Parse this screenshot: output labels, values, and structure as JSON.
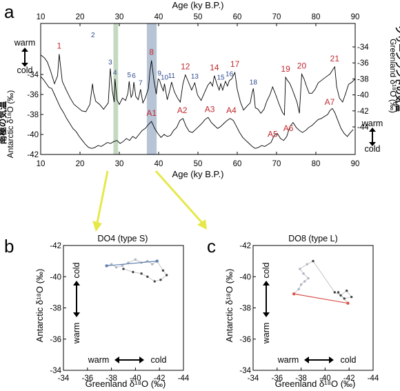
{
  "panels": {
    "a": "a",
    "b": "b",
    "c": "c"
  },
  "colors": {
    "red_label": "#c1272d",
    "blue_label": "#2e4a8f",
    "band_green": "#c5d9c2",
    "band_blue": "#b6c4d6",
    "arrow_yellow": "#e6e84a",
    "scatter_blue": "#5e7fb0",
    "scatter_red": "#d9534f"
  },
  "text": {
    "warm_left": "warm",
    "cold_left": "cold",
    "warm_right": "warm",
    "cold_right": "cold",
    "jp_greenland": "グリーンランドの気温",
    "jp_antarctic": "南極の気温",
    "b_warm_y": "warm",
    "b_cold_y": "cold",
    "b_warm_x": "warm",
    "b_cold_x": "cold",
    "c_warm_y": "warm",
    "c_cold_y": "cold",
    "c_warm_x": "warm",
    "c_cold_x": "cold"
  },
  "chart_data": [
    {
      "type": "line",
      "xlabel_top": "Age (ky B.P.)",
      "xlabel_bottom": "Age (ky B.P.)",
      "ylabel_left": "Antarctic δ¹⁸O (‰)",
      "ylabel_right": "Greenland δ¹⁸O (‰)",
      "xlim": [
        10,
        90
      ],
      "x_ticks": [
        "10",
        "20",
        "30",
        "40",
        "50",
        "60",
        "70",
        "80",
        "90"
      ],
      "ylim_left": [
        -42,
        -34
      ],
      "y_ticks_left": [
        "-34",
        "-36",
        "-38",
        "-40",
        "-42"
      ],
      "ylim_right": [
        -44,
        -34
      ],
      "y_ticks_right": [
        "-34",
        "-36",
        "-38",
        "-40",
        "-42",
        "-44"
      ],
      "highlight_bands": [
        {
          "x0": 28.5,
          "x1": 29.7,
          "color": "green"
        },
        {
          "x0": 37.0,
          "x1": 39.5,
          "color": "blue"
        }
      ],
      "do_events": [
        {
          "label": "1",
          "x": 14.7,
          "style": "red"
        },
        {
          "label": "2",
          "x": 23.3,
          "style": "blue"
        },
        {
          "label": "3",
          "x": 27.7,
          "style": "blue"
        },
        {
          "label": "4",
          "x": 28.9,
          "style": "blue"
        },
        {
          "label": "5",
          "x": 32.5,
          "style": "blue"
        },
        {
          "label": "6",
          "x": 33.7,
          "style": "blue"
        },
        {
          "label": "7",
          "x": 35.4,
          "style": "blue"
        },
        {
          "label": "8",
          "x": 38.2,
          "style": "red"
        },
        {
          "label": "9",
          "x": 40.2,
          "style": "blue"
        },
        {
          "label": "10",
          "x": 41.5,
          "style": "blue"
        },
        {
          "label": "11",
          "x": 43.3,
          "style": "blue"
        },
        {
          "label": "12",
          "x": 46.8,
          "style": "red"
        },
        {
          "label": "13",
          "x": 49.2,
          "style": "blue"
        },
        {
          "label": "14",
          "x": 54.2,
          "style": "red"
        },
        {
          "label": "15",
          "x": 55.8,
          "style": "blue"
        },
        {
          "label": "16",
          "x": 58.0,
          "style": "blue"
        },
        {
          "label": "17",
          "x": 59.4,
          "style": "red"
        },
        {
          "label": "18",
          "x": 64.1,
          "style": "blue"
        },
        {
          "label": "19",
          "x": 72.3,
          "style": "red"
        },
        {
          "label": "20",
          "x": 76.4,
          "style": "red"
        },
        {
          "label": "21",
          "x": 84.8,
          "style": "red"
        }
      ],
      "a_events": [
        {
          "label": "A1",
          "x": 38.2
        },
        {
          "label": "A2",
          "x": 46.0
        },
        {
          "label": "A3",
          "x": 53.0
        },
        {
          "label": "A4",
          "x": 58.5
        },
        {
          "label": "A5",
          "x": 69.0
        },
        {
          "label": "A6",
          "x": 73.0
        },
        {
          "label": "A7",
          "x": 83.5
        }
      ],
      "series": [
        {
          "name": "Greenland",
          "axis": "right",
          "x": [
            10,
            11,
            11.7,
            12.5,
            13.5,
            14.3,
            14.7,
            15.5,
            16.5,
            17.5,
            18.5,
            19.5,
            20.5,
            21.5,
            22.5,
            23.2,
            23.4,
            24,
            25,
            26,
            27.2,
            27.7,
            28.2,
            28.7,
            28.9,
            29.4,
            30,
            30.8,
            31.6,
            32.2,
            32.5,
            33,
            33.4,
            33.7,
            34.2,
            34.8,
            35.4,
            36,
            36.6,
            37.4,
            37.8,
            38.2,
            38.8,
            39.4,
            39.9,
            40.2,
            40.7,
            41.2,
            41.5,
            42.2,
            42.8,
            43.3,
            44,
            44.8,
            45.5,
            46.2,
            46.8,
            47.6,
            48.4,
            49.2,
            49.9,
            50.8,
            51.6,
            52.5,
            53.2,
            53.7,
            54.2,
            54.8,
            55.4,
            55.8,
            56.3,
            57,
            57.5,
            58,
            58.6,
            59.4,
            60,
            60.8,
            61.6,
            62.5,
            63.3,
            63.8,
            64.1,
            64.6,
            65.3,
            66,
            66.8,
            67.5,
            68.3,
            69,
            69.8,
            70.6,
            71.5,
            72,
            72.3,
            72.8,
            73.4,
            74,
            74.6,
            75.2,
            75.8,
            76.4,
            77,
            77.6,
            78.3,
            79,
            79.8,
            80.6,
            81.4,
            82.2,
            83,
            83.6,
            84.1,
            84.5,
            84.8,
            85.3,
            86,
            86.8,
            87.6,
            88.3,
            89.2,
            90
          ],
          "values": [
            -35.0,
            -35.4,
            -35.9,
            -37.0,
            -38.6,
            -37.6,
            -34.9,
            -38.3,
            -39.4,
            -40.4,
            -41.2,
            -41.6,
            -42.0,
            -42.1,
            -41.2,
            -38.6,
            -39.6,
            -40.8,
            -41.2,
            -41.8,
            -41.0,
            -36.7,
            -39.4,
            -40.9,
            -38.0,
            -40.6,
            -41.2,
            -40.4,
            -40.7,
            -39.8,
            -38.3,
            -40.3,
            -39.9,
            -38.4,
            -40.2,
            -40.6,
            -39.3,
            -41.0,
            -40.4,
            -39.2,
            -37.0,
            -35.7,
            -38.2,
            -39.9,
            -38.0,
            -38.1,
            -38.9,
            -39.5,
            -38.6,
            -40.6,
            -39.5,
            -38.4,
            -39.6,
            -40.4,
            -40.9,
            -38.6,
            -37.5,
            -38.4,
            -39.4,
            -38.5,
            -40.0,
            -40.7,
            -39.8,
            -38.8,
            -38.4,
            -38.9,
            -37.6,
            -38.6,
            -39.4,
            -38.6,
            -39.4,
            -38.3,
            -38.9,
            -38.2,
            -38.0,
            -37.2,
            -39.3,
            -40.9,
            -41.9,
            -41.4,
            -41.0,
            -39.7,
            -39.2,
            -41.6,
            -41.8,
            -42.3,
            -41.8,
            -40.8,
            -40.0,
            -39.0,
            -40.0,
            -41.1,
            -42.2,
            -42.5,
            -37.8,
            -38.2,
            -38.6,
            -39.3,
            -40.1,
            -40.9,
            -42.3,
            -37.4,
            -38.0,
            -38.9,
            -39.8,
            -39.8,
            -39.3,
            -38.5,
            -38.2,
            -37.9,
            -37.6,
            -37.4,
            -37.0,
            -36.7,
            -36.5,
            -39.0,
            -40.4,
            -40.9,
            -39.8,
            -38.7,
            -38.4,
            -38.0
          ]
        },
        {
          "name": "Antarctic",
          "axis": "left",
          "x": [
            10,
            10.7,
            11.4,
            12.1,
            12.8,
            13.5,
            14.2,
            15,
            15.8,
            16.6,
            17.4,
            18.2,
            19,
            19.8,
            20.6,
            21.4,
            22.2,
            23,
            23.8,
            24.6,
            25.4,
            26.2,
            27,
            27.8,
            28.6,
            29.4,
            30.2,
            31,
            31.8,
            32.6,
            33.4,
            34.2,
            35,
            35.8,
            36.6,
            37.4,
            38.2,
            39,
            39.8,
            40.6,
            41.4,
            42.2,
            43,
            43.8,
            44.6,
            45.4,
            46.2,
            47,
            47.8,
            48.6,
            49.4,
            50.2,
            51,
            51.8,
            52.6,
            53.4,
            54.2,
            55,
            55.8,
            56.6,
            57.4,
            58.2,
            59,
            59.8,
            60.6,
            61.4,
            62.2,
            63,
            63.8,
            64.6,
            65.4,
            66.2,
            67,
            67.8,
            68.6,
            69.4,
            70.2,
            71,
            71.8,
            72.6,
            73.4,
            74.2,
            75,
            75.8,
            76.6,
            77.4,
            78.2,
            79,
            79.8,
            80.6,
            81.4,
            82.2,
            83,
            83.6,
            84.2,
            84.8,
            85.6,
            86.4,
            87.2,
            88,
            88.8,
            89.5
          ],
          "values": [
            -34.2,
            -34.5,
            -34.9,
            -35.3,
            -35.4,
            -36.0,
            -36.6,
            -37.3,
            -37.8,
            -38.4,
            -38.9,
            -39.4,
            -39.7,
            -40.2,
            -40.6,
            -41.0,
            -41.3,
            -41.4,
            -41.3,
            -41.1,
            -41.2,
            -41.0,
            -40.8,
            -40.9,
            -40.7,
            -40.6,
            -40.9,
            -40.7,
            -40.4,
            -40.6,
            -40.2,
            -40.4,
            -40.0,
            -39.6,
            -39.4,
            -39.0,
            -38.7,
            -39.4,
            -39.9,
            -40.3,
            -40.0,
            -40.2,
            -40.1,
            -39.6,
            -39.3,
            -38.6,
            -38.4,
            -39.2,
            -39.7,
            -39.8,
            -39.5,
            -39.2,
            -38.9,
            -38.5,
            -38.3,
            -38.8,
            -39.1,
            -39.4,
            -39.2,
            -38.9,
            -38.6,
            -38.4,
            -38.6,
            -39.2,
            -39.8,
            -40.3,
            -40.6,
            -40.9,
            -41.2,
            -41.4,
            -41.3,
            -41.1,
            -41.2,
            -41.0,
            -40.8,
            -40.1,
            -39.9,
            -40.4,
            -40.6,
            -40.2,
            -39.2,
            -38.8,
            -39.3,
            -39.6,
            -39.8,
            -39.6,
            -39.3,
            -39.1,
            -38.8,
            -38.5,
            -38.4,
            -38.2,
            -38.0,
            -37.6,
            -37.4,
            -37.8,
            -38.6,
            -39.4,
            -39.9,
            -40.2,
            -39.8,
            -39.5
          ]
        }
      ]
    },
    {
      "type": "scatter",
      "title": "DO4 (type S)",
      "xlabel": "Greenland δ¹⁸O (‰)",
      "ylabel": "Antarctic δ¹⁸O (‰)",
      "xlim": [
        -34,
        -44
      ],
      "ylim": [
        -34,
        -42
      ],
      "x_ticks": [
        "-34",
        "-36",
        "-38",
        "-40",
        "-42",
        "-44"
      ],
      "y_ticks": [
        "-34",
        "-36",
        "-38",
        "-40",
        "-42"
      ],
      "highlight_line": {
        "x": [
          -37.6,
          -41.8
        ],
        "y": [
          -40.7,
          -41.0
        ],
        "color": "blue"
      },
      "points": {
        "x": [
          -37.6,
          -38.0,
          -38.4,
          -38.9,
          -39.4,
          -40.0,
          -40.5,
          -41.0,
          -41.4,
          -41.8,
          -42.3,
          -42.6,
          -42.1,
          -41.6,
          -41.0,
          -40.5,
          -39.8,
          -39.0
        ],
        "y": [
          -40.7,
          -40.8,
          -40.6,
          -40.7,
          -40.9,
          -41.1,
          -40.9,
          -41.0,
          -40.8,
          -41.0,
          -40.4,
          -40.1,
          -39.8,
          -39.7,
          -40.0,
          -40.2,
          -40.3,
          -40.5
        ]
      }
    },
    {
      "type": "scatter",
      "title": "DO8 (type L)",
      "xlabel": "Greenland δ¹⁸O (‰)",
      "ylabel": "Antarctic δ¹⁸O (‰)",
      "xlim": [
        -34,
        -44
      ],
      "ylim": [
        -34,
        -42
      ],
      "x_ticks": [
        "-34",
        "-36",
        "-38",
        "-40",
        "-42",
        "-44"
      ],
      "y_ticks": [
        "-34",
        "-36",
        "-38",
        "-40",
        "-42"
      ],
      "highlight_line": {
        "x": [
          -37.4,
          -41.9
        ],
        "y": [
          -38.9,
          -38.3
        ],
        "color": "red"
      },
      "points": {
        "x": [
          -37.4,
          -37.8,
          -38.0,
          -38.3,
          -38.6,
          -38.2,
          -37.9,
          -38.5,
          -39.0,
          -40.8,
          -41.3,
          -41.8,
          -42.2,
          -41.6,
          -41.1,
          -41.9
        ],
        "y": [
          -38.9,
          -39.2,
          -39.5,
          -39.7,
          -39.9,
          -40.2,
          -40.5,
          -40.8,
          -41.0,
          -39.0,
          -38.8,
          -39.1,
          -38.7,
          -38.6,
          -39.0,
          -38.3
        ]
      }
    }
  ]
}
